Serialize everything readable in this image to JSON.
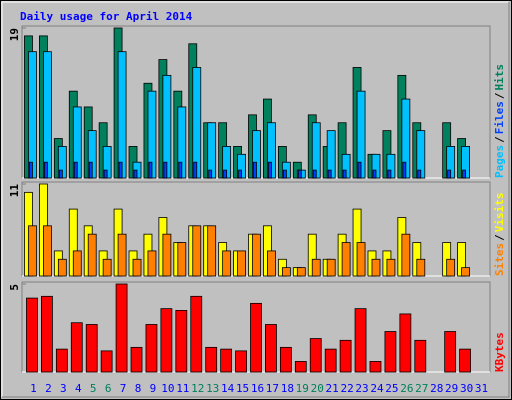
{
  "title": "Daily usage for April 2014",
  "chart_data": [
    {
      "type": "bar",
      "ylim": [
        0,
        19
      ],
      "yticks": [
        19
      ],
      "legend_separator": "/",
      "series": [
        {
          "name": "Hits",
          "color": "#00805c",
          "values": [
            18,
            18,
            5,
            11,
            9,
            7,
            19,
            4,
            12,
            15,
            11,
            17,
            7,
            7,
            4,
            8,
            10,
            4,
            2,
            8,
            4,
            7,
            14,
            3,
            6,
            13,
            7,
            null,
            7,
            5,
            null
          ]
        },
        {
          "name": "Pages",
          "color": "#00c0ff",
          "values": [
            16,
            16,
            4,
            9,
            6,
            4,
            16,
            2,
            11,
            13,
            9,
            14,
            7,
            4,
            3,
            6,
            7,
            2,
            1,
            7,
            6,
            3,
            11,
            3,
            3,
            10,
            6,
            null,
            4,
            4,
            null
          ]
        },
        {
          "name": "Files",
          "color": "#0040ff",
          "values": [
            2,
            2,
            1,
            2,
            2,
            1,
            2,
            1,
            2,
            2,
            2,
            2,
            1,
            1,
            1,
            2,
            2,
            1,
            1,
            1,
            1,
            1,
            2,
            1,
            1,
            2,
            1,
            null,
            1,
            1,
            null
          ]
        }
      ]
    },
    {
      "type": "bar",
      "ylim": [
        0,
        11
      ],
      "yticks": [
        11
      ],
      "legend_separator": "/",
      "series": [
        {
          "name": "Visits",
          "color": "#ffff00",
          "values": [
            10,
            11,
            3,
            8,
            6,
            3,
            8,
            3,
            5,
            7,
            4,
            6,
            6,
            4,
            3,
            5,
            6,
            2,
            1,
            5,
            2,
            5,
            8,
            3,
            3,
            7,
            4,
            null,
            4,
            4,
            null
          ]
        },
        {
          "name": "Sites",
          "color": "#ff8000",
          "values": [
            6,
            6,
            2,
            3,
            5,
            2,
            5,
            2,
            3,
            5,
            4,
            6,
            6,
            3,
            3,
            5,
            3,
            1,
            1,
            2,
            2,
            4,
            4,
            2,
            2,
            5,
            2,
            null,
            2,
            1,
            null
          ]
        }
      ]
    },
    {
      "type": "bar",
      "ylim": [
        0,
        5
      ],
      "yticks": [
        5
      ],
      "categories": [
        "1",
        "2",
        "3",
        "4",
        "5",
        "6",
        "7",
        "8",
        "9",
        "10",
        "11",
        "12",
        "13",
        "14",
        "15",
        "16",
        "17",
        "18",
        "19",
        "20",
        "21",
        "22",
        "23",
        "24",
        "25",
        "26",
        "27",
        "28",
        "29",
        "30",
        "31"
      ],
      "category_colors": [
        "#0000ff",
        "#0000ff",
        "#0000ff",
        "#0000ff",
        "#00805c",
        "#00805c",
        "#0000ff",
        "#0000ff",
        "#0000ff",
        "#0000ff",
        "#0000ff",
        "#00805c",
        "#00805c",
        "#0000ff",
        "#0000ff",
        "#0000ff",
        "#0000ff",
        "#0000ff",
        "#00805c",
        "#00805c",
        "#0000ff",
        "#0000ff",
        "#0000ff",
        "#0000ff",
        "#0000ff",
        "#00805c",
        "#00805c",
        "#0000ff",
        "#0000ff",
        "#0000ff",
        "#0000ff"
      ],
      "series": [
        {
          "name": "KBytes",
          "color": "#ff0000",
          "values": [
            4.2,
            4.3,
            1.3,
            2.8,
            2.7,
            1.2,
            5.0,
            1.4,
            2.7,
            3.6,
            3.5,
            4.3,
            1.4,
            1.3,
            1.2,
            3.9,
            2.7,
            1.4,
            0.6,
            1.9,
            1.3,
            1.8,
            3.6,
            0.6,
            2.3,
            3.3,
            1.8,
            null,
            2.3,
            1.3,
            null
          ]
        }
      ]
    }
  ]
}
